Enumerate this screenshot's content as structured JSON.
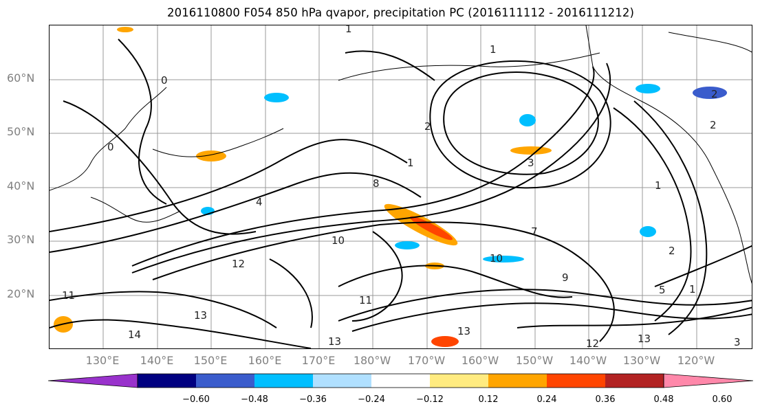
{
  "title": "2016110800 F054 850 hPa qvapor, precipitation PC (2016111112 - 2016111212)",
  "lat_labels": [
    "60°N",
    "50°N",
    "40°N",
    "30°N",
    "20°N"
  ],
  "lon_labels": [
    "130°E",
    "140°E",
    "150°E",
    "160°E",
    "170°E",
    "180°W",
    "170°W",
    "160°W",
    "150°W",
    "140°W",
    "130°W",
    "120°W"
  ],
  "colorbar": {
    "tick_labels": [
      "−0.60",
      "−0.48",
      "−0.36",
      "−0.24",
      "−0.12",
      "0.12",
      "0.24",
      "0.36",
      "0.48",
      "0.60"
    ],
    "colors": [
      "#9932cc",
      "#000080",
      "#3a5ccc",
      "#00bfff",
      "#b0e0ff",
      "#ffffff",
      "#ffeb80",
      "#ffa500",
      "#ff4500",
      "#b22222",
      "#ff88aa"
    ]
  },
  "contour_labels": [
    "1",
    "1",
    "2",
    "2",
    "2",
    "0",
    "0",
    "1",
    "3",
    "4",
    "7",
    "8",
    "9",
    "10",
    "10",
    "11",
    "12",
    "13",
    "13",
    "13",
    "14",
    "12",
    "13",
    "11",
    "1",
    "5",
    "1",
    "2",
    "3"
  ]
}
